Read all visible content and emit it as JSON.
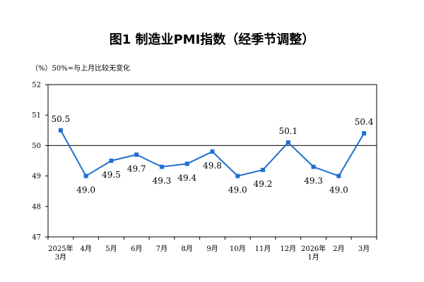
{
  "chart_data": {
    "type": "line",
    "title": "图1  制造业PMI指数（经季节调整）",
    "unit_note": "（%）50%=与上月比较无变化",
    "categories": [
      [
        "2025年",
        "3月"
      ],
      [
        "4月"
      ],
      [
        "5月"
      ],
      [
        "6月"
      ],
      [
        "7月"
      ],
      [
        "8月"
      ],
      [
        "9月"
      ],
      [
        "10月"
      ],
      [
        "11月"
      ],
      [
        "12月"
      ],
      [
        "2026年",
        "1月"
      ],
      [
        "2月"
      ],
      [
        "3月"
      ]
    ],
    "series": [
      {
        "values": [
          50.5,
          49.0,
          49.5,
          49.7,
          49.3,
          49.4,
          49.8,
          49.0,
          49.2,
          50.1,
          49.3,
          49.0,
          50.4
        ],
        "labels": [
          "50.5",
          "49.0",
          "49.5",
          "49.7",
          "49.3",
          "49.4",
          "49.8",
          "49.0",
          "49.2",
          "50.1",
          "49.3",
          "49.0",
          "50.4"
        ],
        "color": "#1f6fd0"
      }
    ],
    "label_position": [
      "above",
      "below",
      "below",
      "below",
      "below",
      "below",
      "below",
      "below",
      "below",
      "above",
      "below",
      "below",
      "above"
    ],
    "ylim": [
      47,
      52
    ],
    "yticks": [
      "47",
      "48",
      "49",
      "50",
      "51",
      "52"
    ],
    "reference_line": 50,
    "grid": false
  }
}
